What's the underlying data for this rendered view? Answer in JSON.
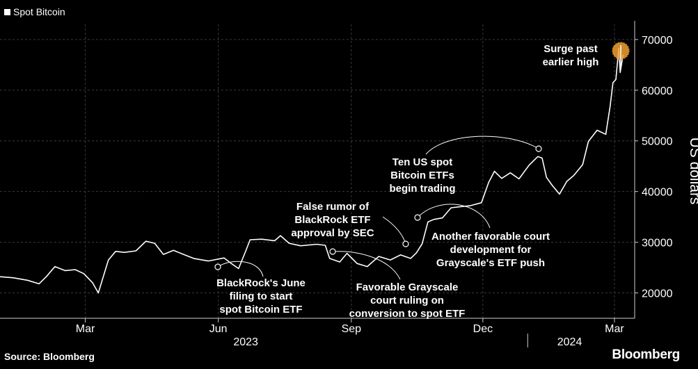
{
  "legend": {
    "label": "Spot Bitcoin"
  },
  "source": "Source: Bloomberg",
  "brand": "Bloomberg",
  "colors": {
    "background": "#000000",
    "line": "#ffffff",
    "grid": "#3a3a3a",
    "highlight": "#f0a030"
  },
  "chart_data": {
    "type": "line",
    "ylabel": "US dollars",
    "ylim": [
      15000,
      73000
    ],
    "yticks": [
      20000,
      30000,
      40000,
      50000,
      60000,
      70000
    ],
    "xrange": [
      "2023-01-01",
      "2024-03-15"
    ],
    "month_ticks": [
      {
        "date": "2023-03-01",
        "label": "Mar"
      },
      {
        "date": "2023-06-01",
        "label": "Jun"
      },
      {
        "date": "2023-09-01",
        "label": "Sep"
      },
      {
        "date": "2023-12-01",
        "label": "Dec"
      },
      {
        "date": "2024-03-01",
        "label": "Mar"
      }
    ],
    "year_labels": [
      {
        "label": "2023",
        "date": "2023-06-20"
      },
      {
        "label": "2024",
        "date": "2024-01-30"
      }
    ],
    "series": [
      {
        "points": [
          [
            "2023-01-01",
            23200
          ],
          [
            "2023-01-10",
            23000
          ],
          [
            "2023-01-20",
            22500
          ],
          [
            "2023-01-28",
            21800
          ],
          [
            "2023-02-02",
            23200
          ],
          [
            "2023-02-08",
            25200
          ],
          [
            "2023-02-15",
            24400
          ],
          [
            "2023-02-22",
            24600
          ],
          [
            "2023-02-28",
            23800
          ],
          [
            "2023-03-06",
            22000
          ],
          [
            "2023-03-10",
            20000
          ],
          [
            "2023-03-13",
            22800
          ],
          [
            "2023-03-17",
            26500
          ],
          [
            "2023-03-22",
            28200
          ],
          [
            "2023-03-28",
            28000
          ],
          [
            "2023-04-05",
            28300
          ],
          [
            "2023-04-12",
            30200
          ],
          [
            "2023-04-18",
            29800
          ],
          [
            "2023-04-24",
            27600
          ],
          [
            "2023-05-01",
            28400
          ],
          [
            "2023-05-08",
            27600
          ],
          [
            "2023-05-15",
            26800
          ],
          [
            "2023-05-25",
            26300
          ],
          [
            "2023-06-05",
            26900
          ],
          [
            "2023-06-10",
            25800
          ],
          [
            "2023-06-15",
            24800
          ],
          [
            "2023-06-20",
            28300
          ],
          [
            "2023-06-23",
            30500
          ],
          [
            "2023-07-01",
            30600
          ],
          [
            "2023-07-10",
            30300
          ],
          [
            "2023-07-14",
            31300
          ],
          [
            "2023-07-20",
            29800
          ],
          [
            "2023-07-28",
            29300
          ],
          [
            "2023-08-08",
            29600
          ],
          [
            "2023-08-14",
            29400
          ],
          [
            "2023-08-17",
            26800
          ],
          [
            "2023-08-24",
            26100
          ],
          [
            "2023-08-29",
            27800
          ],
          [
            "2023-09-05",
            25800
          ],
          [
            "2023-09-12",
            25200
          ],
          [
            "2023-09-20",
            27200
          ],
          [
            "2023-09-28",
            26500
          ],
          [
            "2023-10-05",
            27500
          ],
          [
            "2023-10-12",
            26800
          ],
          [
            "2023-10-16",
            27900
          ],
          [
            "2023-10-20",
            29700
          ],
          [
            "2023-10-24",
            34000
          ],
          [
            "2023-10-28",
            34500
          ],
          [
            "2023-11-03",
            34800
          ],
          [
            "2023-11-09",
            36800
          ],
          [
            "2023-11-15",
            37000
          ],
          [
            "2023-11-22",
            37200
          ],
          [
            "2023-11-30",
            37800
          ],
          [
            "2023-12-05",
            41800
          ],
          [
            "2023-12-09",
            44000
          ],
          [
            "2023-12-14",
            42600
          ],
          [
            "2023-12-20",
            43700
          ],
          [
            "2023-12-26",
            42500
          ],
          [
            "2024-01-02",
            45200
          ],
          [
            "2024-01-08",
            46900
          ],
          [
            "2024-01-11",
            46600
          ],
          [
            "2024-01-14",
            42800
          ],
          [
            "2024-01-18",
            41200
          ],
          [
            "2024-01-23",
            39500
          ],
          [
            "2024-01-28",
            42000
          ],
          [
            "2024-02-02",
            43200
          ],
          [
            "2024-02-08",
            45300
          ],
          [
            "2024-02-12",
            49900
          ],
          [
            "2024-02-18",
            52100
          ],
          [
            "2024-02-24",
            51300
          ],
          [
            "2024-02-27",
            56800
          ],
          [
            "2024-02-29",
            61500
          ],
          [
            "2024-03-02",
            62100
          ],
          [
            "2024-03-04",
            68300
          ],
          [
            "2024-03-05",
            63500
          ],
          [
            "2024-03-07",
            67000
          ]
        ]
      }
    ],
    "annotations": [
      {
        "text": [
          "BlackRock's June",
          "filing to start",
          "spot Bitcoin ETF"
        ],
        "date": "2023-06-15",
        "value": 24800
      },
      {
        "text": [
          "Favorable Grayscale",
          "court ruling on",
          "conversion to spot ETF"
        ],
        "date": "2023-08-29",
        "value": 27800
      },
      {
        "text": [
          "False rumor of",
          "BlackRock ETF",
          "approval by SEC"
        ],
        "date": "2023-10-16",
        "value": 29700
      },
      {
        "text": [
          "Another favorable court",
          "development for",
          "Grayscale's ETF push"
        ],
        "date": "2023-10-24",
        "value": 34800
      },
      {
        "text": [
          "Ten US spot",
          "Bitcoin ETFs",
          "begin trading"
        ],
        "date": "2024-01-11",
        "value": 48900
      },
      {
        "text": [
          "Surge past",
          "earlier high"
        ],
        "date": "2024-03-05",
        "value": 68600,
        "highlight": true
      }
    ]
  }
}
